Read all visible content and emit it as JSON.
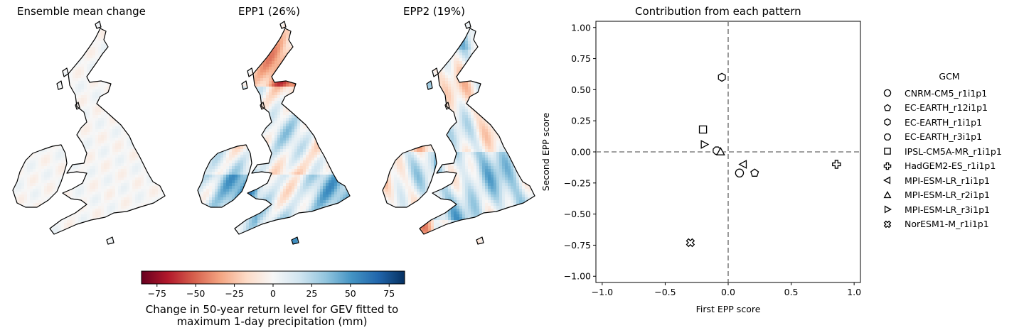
{
  "maps": [
    {
      "title": "Ensemble mean change",
      "pattern": "mean"
    },
    {
      "title": "EPP1 (26%)",
      "pattern": "epp1"
    },
    {
      "title": "EPP2 (19%)",
      "pattern": "epp2"
    }
  ],
  "colorbar": {
    "ticks": [
      "−75",
      "−50",
      "−25",
      "0",
      "25",
      "50",
      "75"
    ],
    "tick_values": [
      -75,
      -50,
      -25,
      0,
      25,
      50,
      75
    ],
    "range": [
      -85,
      85
    ],
    "colormap": "RdBu",
    "label_line1": "Change in 50-year return level for GEV fitted to",
    "label_line2": "maximum 1-day precipitation (mm)"
  },
  "chart_data": {
    "type": "scatter",
    "title": "Contribution from each pattern",
    "xlabel": "First EPP score",
    "ylabel": "Second EPP score",
    "xlim": [
      -1.05,
      1.05
    ],
    "ylim": [
      -1.05,
      1.05
    ],
    "xticks": [
      -1.0,
      -0.5,
      0.0,
      0.5,
      1.0
    ],
    "xtick_labels": [
      "−1.0",
      "−0.5",
      "0.0",
      "0.5",
      "1.0"
    ],
    "yticks": [
      1.0,
      0.75,
      0.5,
      0.25,
      0.0,
      -0.25,
      -0.5,
      -0.75,
      -1.0
    ],
    "ytick_labels": [
      "1.00",
      "0.75",
      "0.50",
      "0.25",
      "0.00",
      "−0.25",
      "−0.50",
      "−0.75",
      "−1.00"
    ],
    "reference_lines": {
      "x": 0,
      "y": 0,
      "style": "dashed",
      "color": "#808080"
    },
    "legend_title": "GCM",
    "legend_position": "right",
    "series": [
      {
        "name": "CNRM-CM5_r1i1p1",
        "marker": "circle",
        "x": 0.09,
        "y": -0.17
      },
      {
        "name": "EC-EARTH_r12i1p1",
        "marker": "pentagon",
        "x": 0.21,
        "y": -0.17
      },
      {
        "name": "EC-EARTH_r1i1p1",
        "marker": "hexagon",
        "x": -0.05,
        "y": 0.6
      },
      {
        "name": "EC-EARTH_r3i1p1",
        "marker": "octagon",
        "x": -0.09,
        "y": 0.01
      },
      {
        "name": "IPSL-CM5A-MR_r1i1p1",
        "marker": "square",
        "x": -0.2,
        "y": 0.18
      },
      {
        "name": "HadGEM2-ES_r1i1p1",
        "marker": "plus",
        "x": 0.86,
        "y": -0.1
      },
      {
        "name": "MPI-ESM-LR_r1i1p1",
        "marker": "triangle-left",
        "x": 0.12,
        "y": -0.1
      },
      {
        "name": "MPI-ESM-LR_r2i1p1",
        "marker": "triangle-up",
        "x": -0.06,
        "y": 0.0
      },
      {
        "name": "MPI-ESM-LR_r3i1p1",
        "marker": "triangle-right",
        "x": -0.19,
        "y": 0.06
      },
      {
        "name": "NorESM1-M_r1i1p1",
        "marker": "x-filled",
        "x": -0.3,
        "y": -0.73
      }
    ]
  }
}
